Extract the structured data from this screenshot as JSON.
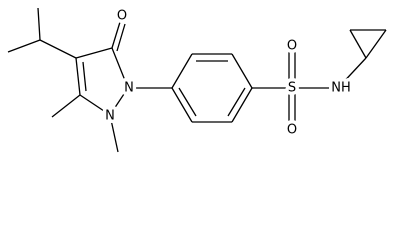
{
  "atoms": [
    "O",
    "N",
    "N",
    "S",
    "O",
    "O",
    "NH"
  ]
}
